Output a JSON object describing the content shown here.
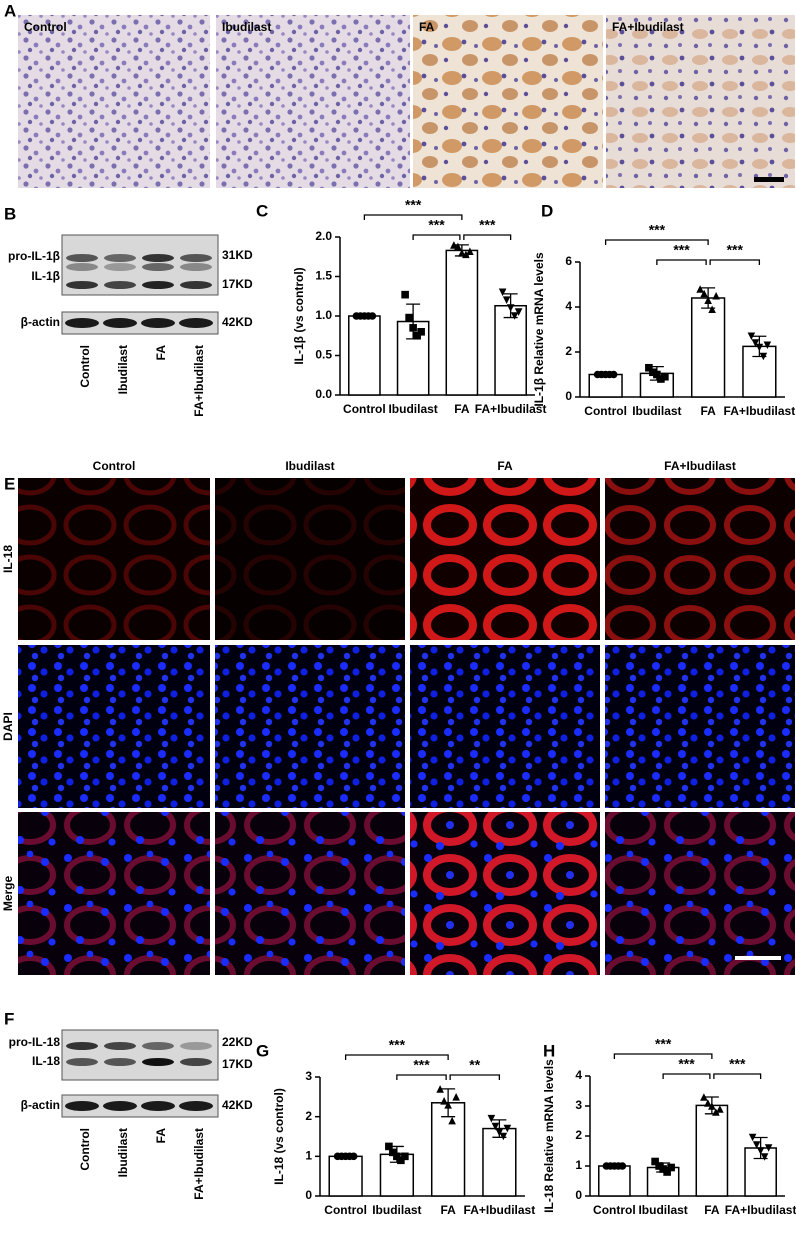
{
  "panel_labels": [
    "A",
    "B",
    "C",
    "D",
    "E",
    "F",
    "G",
    "H"
  ],
  "ihc": {
    "labels": [
      "Control",
      "Ibudilast",
      "FA",
      "FA+Ibudilast"
    ]
  },
  "blot_b": {
    "bands": [
      "pro-IL-1β",
      "IL-1β"
    ],
    "sizes": [
      "31KD",
      "17KD"
    ],
    "loading": "β-actin",
    "loading_size": "42KD",
    "lanes": [
      "Control",
      "Ibudilast",
      "FA",
      "FA+Ibudilast"
    ]
  },
  "fluorescence": {
    "columns": [
      "Control",
      "Ibudilast",
      "FA",
      "FA+Ibudilast"
    ],
    "rows": [
      "IL-18",
      "DAPI",
      "Merge"
    ]
  },
  "blot_f": {
    "bands": [
      "pro-IL-18",
      "IL-18"
    ],
    "sizes": [
      "22KD",
      "17KD"
    ],
    "loading": "β-actin",
    "loading_size": "42KD",
    "lanes": [
      "Control",
      "Ibudilast",
      "FA",
      "FA+Ibudilast"
    ]
  },
  "chart_data": [
    {
      "type": "bar",
      "y_label": "IL-1β  (vs control)",
      "categories": [
        "Control",
        "Ibudilast",
        "FA",
        "FA+Ibudilast"
      ],
      "values": [
        1.0,
        0.93,
        1.83,
        1.13
      ],
      "errors": [
        0,
        0.22,
        0.07,
        0.15
      ],
      "points": [
        [
          1,
          1,
          1,
          1,
          1
        ],
        [
          1.27,
          0.98,
          0.85,
          0.75,
          0.8
        ],
        [
          1.9,
          1.88,
          1.8,
          1.78,
          1.82
        ],
        [
          1.3,
          1.2,
          1.1,
          1.0,
          1.05
        ]
      ],
      "markers": [
        "circle",
        "square",
        "triangle",
        "triangle-down"
      ],
      "color": "#ffffff",
      "edge_color": "#000000",
      "ylim": [
        0,
        2.0
      ],
      "yticks": [
        {
          "value": 0,
          "label": "0.0"
        },
        0.5,
        {
          "value": 1,
          "label": "1.0"
        },
        1.5,
        {
          "value": 2,
          "label": "2.0"
        }
      ],
      "annotations": [
        {
          "text": "***",
          "between": [
            "Control",
            "FA"
          ]
        },
        {
          "text": "***",
          "between": [
            "Ibudilast",
            "FA"
          ]
        },
        {
          "text": "***",
          "between": [
            "FA",
            "FA+Ibudilast"
          ]
        }
      ]
    },
    {
      "type": "bar",
      "y_label": "IL-1β Relative mRNA levels",
      "categories": [
        "Control",
        "Ibudilast",
        "FA",
        "FA+Ibudilast"
      ],
      "values": [
        1.0,
        1.05,
        4.4,
        2.25
      ],
      "errors": [
        0,
        0.3,
        0.45,
        0.45
      ],
      "points": [
        [
          1,
          1,
          1,
          1,
          1
        ],
        [
          1.3,
          1.1,
          1.0,
          0.8,
          0.9
        ],
        [
          4.8,
          4.6,
          4.3,
          3.9,
          4.5
        ],
        [
          2.7,
          2.4,
          2.2,
          1.8,
          2.3
        ]
      ],
      "markers": [
        "circle",
        "square",
        "triangle",
        "triangle-down"
      ],
      "color": "#ffffff",
      "edge_color": "#000000",
      "ylim": [
        0,
        6
      ],
      "yticks": [
        0,
        2,
        4,
        6
      ],
      "annotations": [
        {
          "text": "***",
          "between": [
            "Control",
            "FA"
          ]
        },
        {
          "text": "***",
          "between": [
            "Ibudilast",
            "FA"
          ]
        },
        {
          "text": "***",
          "between": [
            "FA",
            "FA+Ibudilast"
          ]
        }
      ]
    },
    {
      "type": "bar",
      "y_label": "IL-18  (vs control)",
      "categories": [
        "Control",
        "Ibudilast",
        "FA",
        "FA+Ibudilast"
      ],
      "values": [
        1.0,
        1.05,
        2.35,
        1.7
      ],
      "errors": [
        0,
        0.2,
        0.35,
        0.22
      ],
      "points": [
        [
          1,
          1,
          1,
          1,
          1
        ],
        [
          1.25,
          1.1,
          1.0,
          0.9,
          1.0
        ],
        [
          2.7,
          2.4,
          2.3,
          1.9,
          2.5
        ],
        [
          1.95,
          1.75,
          1.6,
          1.5,
          1.7
        ]
      ],
      "markers": [
        "circle",
        "square",
        "triangle",
        "triangle-down"
      ],
      "color": "#ffffff",
      "edge_color": "#000000",
      "ylim": [
        0,
        3
      ],
      "yticks": [
        0,
        1,
        2,
        3
      ],
      "annotations": [
        {
          "text": "***",
          "between": [
            "Control",
            "FA"
          ]
        },
        {
          "text": "***",
          "between": [
            "Ibudilast",
            "FA"
          ]
        },
        {
          "text": "**",
          "between": [
            "FA",
            "FA+Ibudilast"
          ]
        }
      ]
    },
    {
      "type": "bar",
      "y_label": "IL-18 Relative mRNA levels",
      "categories": [
        "Control",
        "Ibudilast",
        "FA",
        "FA+Ibudilast"
      ],
      "values": [
        1.0,
        0.95,
        3.02,
        1.6
      ],
      "errors": [
        0,
        0.15,
        0.28,
        0.35
      ],
      "points": [
        [
          1,
          1,
          1,
          1,
          1
        ],
        [
          1.15,
          1.0,
          0.9,
          0.8,
          0.95
        ],
        [
          3.3,
          3.1,
          3.0,
          2.8,
          2.9
        ],
        [
          1.95,
          1.7,
          1.5,
          1.3,
          1.6
        ]
      ],
      "markers": [
        "circle",
        "square",
        "triangle",
        "triangle-down"
      ],
      "color": "#ffffff",
      "edge_color": "#000000",
      "ylim": [
        0,
        4
      ],
      "yticks": [
        0,
        1,
        2,
        3,
        4
      ],
      "annotations": [
        {
          "text": "***",
          "between": [
            "Control",
            "FA"
          ]
        },
        {
          "text": "***",
          "between": [
            "Ibudilast",
            "FA"
          ]
        },
        {
          "text": "***",
          "between": [
            "FA",
            "FA+Ibudilast"
          ]
        }
      ]
    }
  ]
}
